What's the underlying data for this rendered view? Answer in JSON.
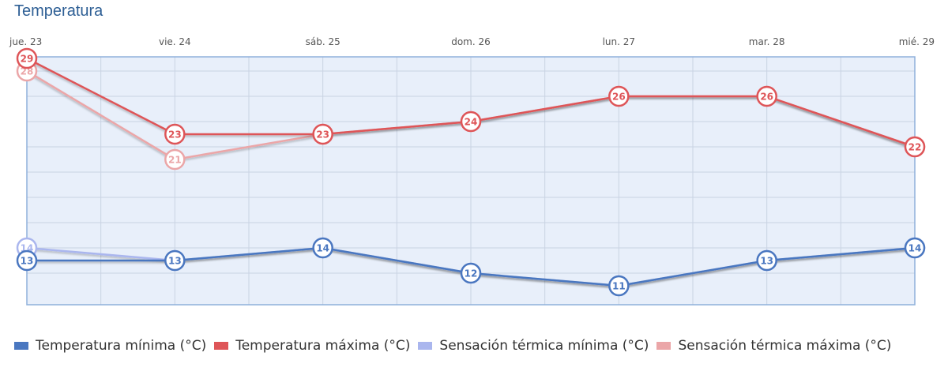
{
  "title": "Temperatura",
  "chart_data": {
    "type": "line",
    "categories": [
      "jue. 23",
      "vie. 24",
      "sáb. 25",
      "dom. 26",
      "lun. 27",
      "mar. 28",
      "mié. 29"
    ],
    "ylim": [
      10,
      30
    ],
    "grid": true,
    "legend_position": "bottom",
    "series": [
      {
        "name": "Temperatura mínima (°C)",
        "color": "#4a77c0",
        "values": [
          13,
          13,
          14,
          12,
          11,
          13,
          14
        ]
      },
      {
        "name": "Temperatura máxima (°C)",
        "color": "#de5558",
        "values": [
          29,
          23,
          23,
          24,
          26,
          26,
          22
        ]
      },
      {
        "name": "Sensación térmica mínima (°C)",
        "color": "#aab6ee",
        "values": [
          14,
          13,
          14,
          12,
          11,
          13,
          14
        ]
      },
      {
        "name": "Sensación térmica máxima (°C)",
        "color": "#eba6a8",
        "values": [
          28,
          21,
          23,
          24,
          26,
          26,
          22
        ]
      }
    ]
  }
}
